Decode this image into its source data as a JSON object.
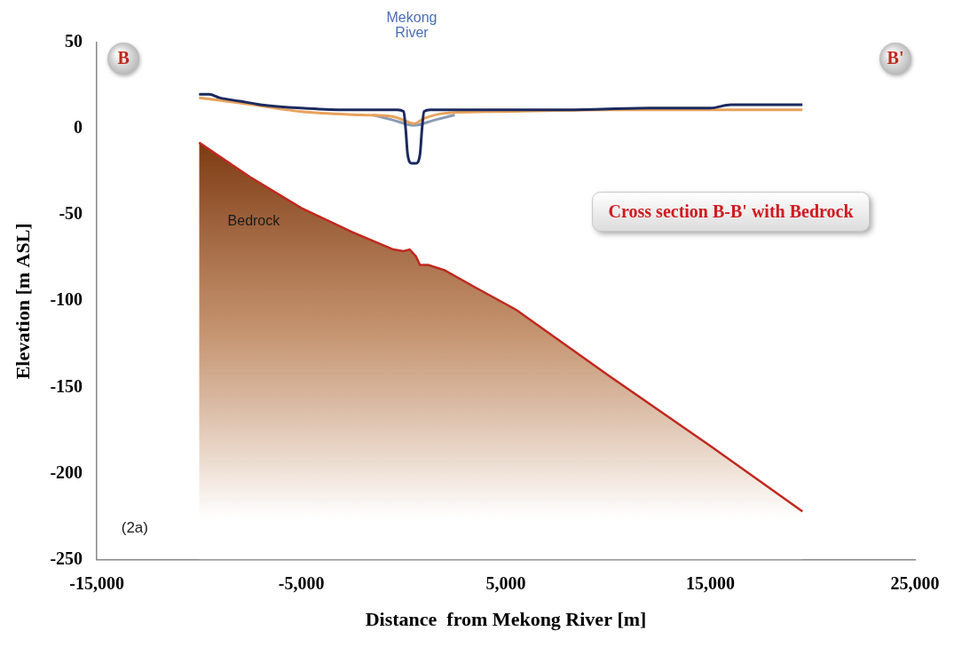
{
  "chart_data": {
    "type": "line",
    "title": "Cross section B-B' with Bedrock",
    "xlabel": "Distance  from Mekong River [m]",
    "ylabel": "Elevation [m ASL]",
    "annotations": {
      "section_start": "B",
      "section_end": "B'",
      "river": "Mekong River",
      "panel": "(2a)"
    },
    "xlim": [
      -15000,
      25000
    ],
    "xticks": [
      {
        "value": -15000,
        "label": "-15,000"
      },
      {
        "value": -5000,
        "label": "-5,000"
      },
      {
        "value": 5000,
        "label": "5,000"
      },
      {
        "value": 15000,
        "label": "15,000"
      },
      {
        "value": 25000,
        "label": "25,000"
      }
    ],
    "ylim": [
      -250,
      50
    ],
    "yticks": [
      -250,
      -200,
      -150,
      -100,
      -50,
      0,
      50
    ],
    "grid": false,
    "series": [
      {
        "color": "#1b2a5e",
        "x": [
          -10000,
          -9500,
          -9000,
          -8000,
          -7000,
          -5000,
          -3000,
          -1000,
          -300,
          0,
          100,
          200,
          400,
          600,
          800,
          900,
          1000,
          1300,
          3000,
          8000,
          12000,
          15000,
          16000,
          19500
        ],
        "values": [
          20,
          20,
          18,
          16,
          14,
          12,
          11,
          11,
          11,
          10,
          0,
          -15,
          -20,
          -20,
          -15,
          0,
          10,
          11,
          11,
          11,
          12,
          12,
          14,
          14
        ]
      },
      {
        "color": "#e8a25c",
        "x": [
          -10000,
          -8000,
          -5000,
          -2000,
          -500,
          0,
          500,
          1000,
          2000,
          5000,
          10000,
          15000,
          19500
        ],
        "values": [
          18,
          15,
          10,
          8,
          7,
          5,
          3,
          6,
          9,
          10,
          11,
          11,
          11
        ]
      },
      {
        "color": "#8a9bb0",
        "x": [
          -1500,
          -500,
          500,
          1500,
          2500
        ],
        "values": [
          8,
          5,
          2,
          5,
          8
        ]
      },
      {
        "name": "Bedrock",
        "type": "area",
        "color": "#c0281e",
        "x": [
          -10000,
          -7500,
          -5000,
          -2500,
          -500,
          0,
          300,
          600,
          800,
          1200,
          2000,
          3500,
          5500,
          10000,
          15000,
          19500
        ],
        "values": [
          -8,
          -28,
          -46,
          -60,
          -70,
          -71,
          -70,
          -74,
          -79,
          -79,
          -82,
          -92,
          -105,
          -143,
          -184,
          -222
        ]
      }
    ]
  }
}
